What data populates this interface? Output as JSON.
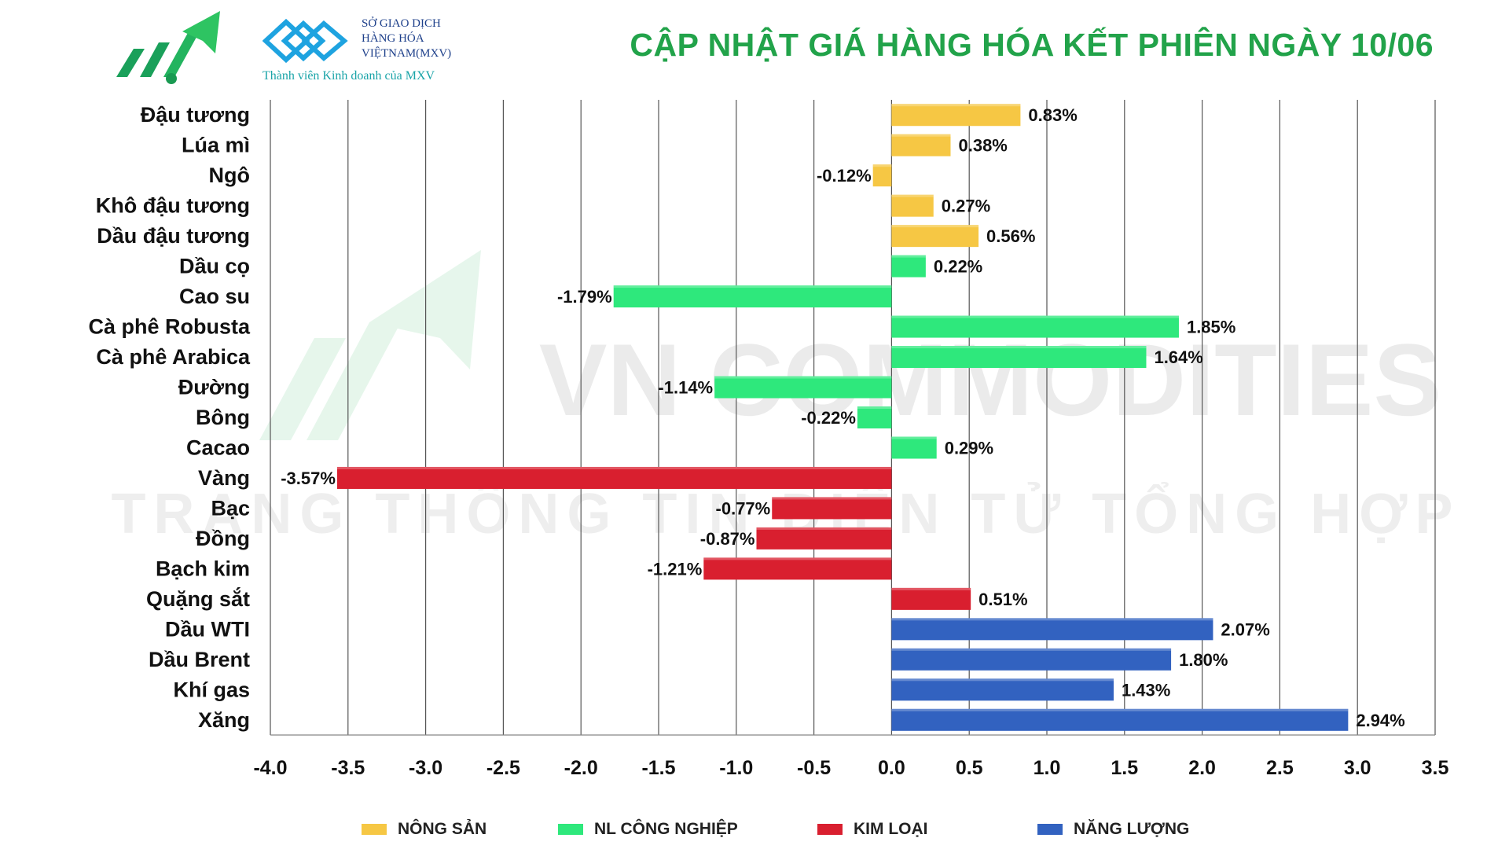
{
  "header": {
    "title": "CẬP NHẬT GIÁ HÀNG HÓA KẾT PHIÊN NGÀY 10/06",
    "logo_icon": "growth-arrow-logo-icon",
    "mxv_logo_icon": "mxv-logo-icon",
    "mxv_lines": [
      "SỞ GIAO DỊCH",
      "HÀNG HÓA",
      "VIỆTNAM(MXV)"
    ],
    "mxv_tagline": "Thành viên Kinh doanh của MXV"
  },
  "watermark": {
    "line1": "VN COMMODITIES",
    "line2": "TRANG THÔNG TIN ĐIỆN TỬ TỔNG HỢP"
  },
  "colors": {
    "nong_san": "#f6c744",
    "nl_cong_nghiep": "#2ee87c",
    "kim_loai": "#d91f2f",
    "nang_luong": "#3262c0",
    "title": "#22a34a"
  },
  "chart_data": {
    "type": "bar",
    "orientation": "horizontal",
    "title": "CẬP NHẬT GIÁ HÀNG HÓA KẾT PHIÊN NGÀY 10/06",
    "xlabel": "",
    "ylabel": "",
    "xlim": [
      -4.0,
      3.5
    ],
    "xticks": [
      -4.0,
      -3.5,
      -3.0,
      -2.5,
      -2.0,
      -1.5,
      -1.0,
      -0.5,
      0.0,
      0.5,
      1.0,
      1.5,
      2.0,
      2.5,
      3.0,
      3.5
    ],
    "grid": "vertical",
    "legend_position": "bottom",
    "groups": [
      {
        "name": "NÔNG SẢN",
        "color": "#f6c744"
      },
      {
        "name": "NL CÔNG NGHIỆP",
        "color": "#2ee87c"
      },
      {
        "name": "KIM LOẠI",
        "color": "#d91f2f"
      },
      {
        "name": "NĂNG LƯỢNG",
        "color": "#3262c0"
      }
    ],
    "items": [
      {
        "label": "Đậu tương",
        "value": 0.83,
        "text": "0.83%",
        "group": 0
      },
      {
        "label": "Lúa mì",
        "value": 0.38,
        "text": "0.38%",
        "group": 0
      },
      {
        "label": "Ngô",
        "value": -0.12,
        "text": "-0.12%",
        "group": 0
      },
      {
        "label": "Khô đậu tương",
        "value": 0.27,
        "text": "0.27%",
        "group": 0
      },
      {
        "label": "Dầu đậu tương",
        "value": 0.56,
        "text": "0.56%",
        "group": 0
      },
      {
        "label": "Dầu cọ",
        "value": 0.22,
        "text": "0.22%",
        "group": 1
      },
      {
        "label": "Cao su",
        "value": -1.79,
        "text": "-1.79%",
        "group": 1
      },
      {
        "label": "Cà phê Robusta",
        "value": 1.85,
        "text": "1.85%",
        "group": 1
      },
      {
        "label": "Cà phê Arabica",
        "value": 1.64,
        "text": "1.64%",
        "group": 1
      },
      {
        "label": "Đường",
        "value": -1.14,
        "text": "-1.14%",
        "group": 1
      },
      {
        "label": "Bông",
        "value": -0.22,
        "text": "-0.22%",
        "group": 1
      },
      {
        "label": "Cacao",
        "value": 0.29,
        "text": "0.29%",
        "group": 1
      },
      {
        "label": "Vàng",
        "value": -3.57,
        "text": "-3.57%",
        "group": 2
      },
      {
        "label": "Bạc",
        "value": -0.77,
        "text": "-0.77%",
        "group": 2
      },
      {
        "label": "Đồng",
        "value": -0.87,
        "text": "-0.87%",
        "group": 2
      },
      {
        "label": "Bạch kim",
        "value": -1.21,
        "text": "-1.21%",
        "group": 2
      },
      {
        "label": "Quặng sắt",
        "value": 0.51,
        "text": "0.51%",
        "group": 2
      },
      {
        "label": "Dầu WTI",
        "value": 2.07,
        "text": "2.07%",
        "group": 3
      },
      {
        "label": "Dầu Brent",
        "value": 1.8,
        "text": "1.80%",
        "group": 3
      },
      {
        "label": "Khí gas",
        "value": 1.43,
        "text": "1.43%",
        "group": 3
      },
      {
        "label": "Xăng",
        "value": 2.94,
        "text": "2.94%",
        "group": 3
      }
    ]
  }
}
